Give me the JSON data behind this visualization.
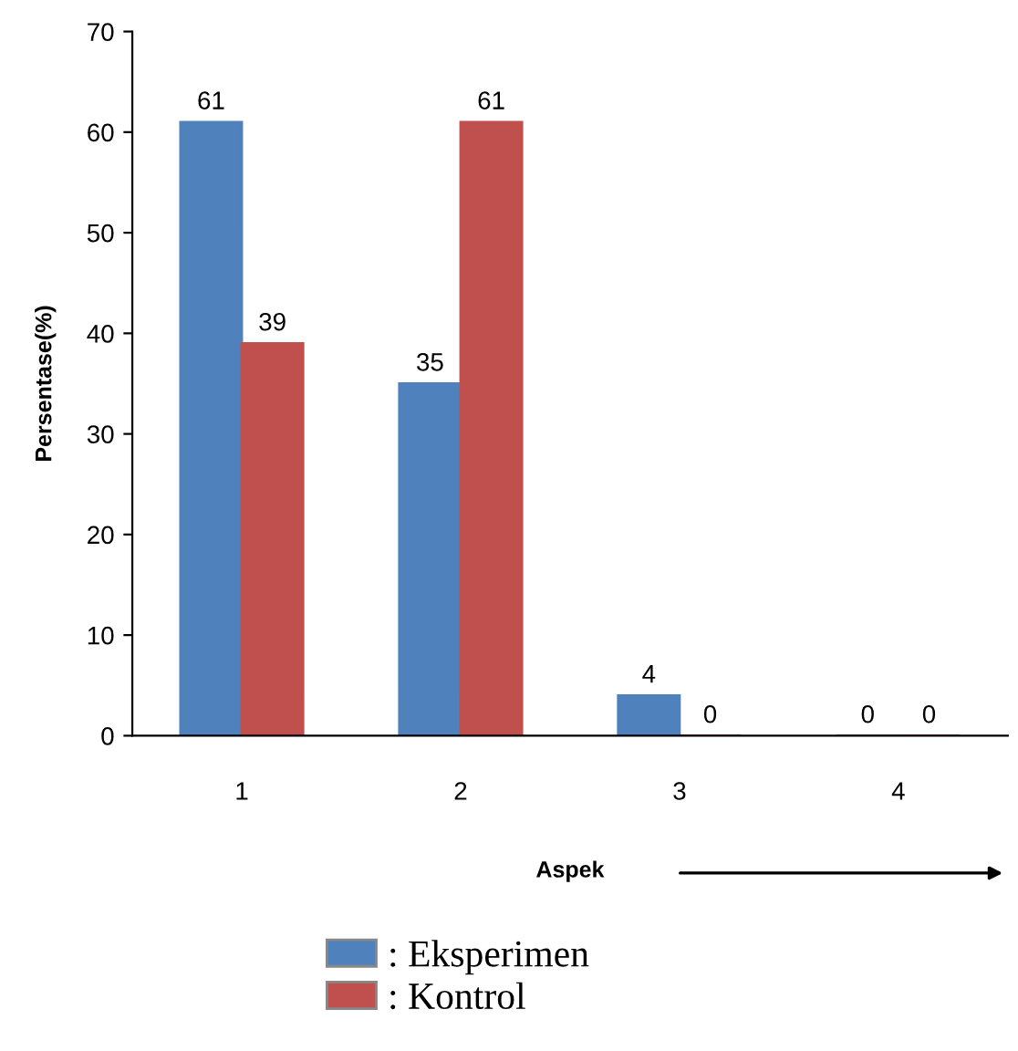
{
  "chart_data": {
    "type": "bar",
    "xlabel": "Aspek",
    "ylabel": "Persentase(%)",
    "categories": [
      "1",
      "2",
      "3",
      "4"
    ],
    "series": [
      {
        "name": ": Eksperimen",
        "color": "#4f81bd",
        "values": [
          61,
          35,
          4,
          0
        ]
      },
      {
        "name": ": Kontrol",
        "color": "#c0504d",
        "values": [
          39,
          61,
          0,
          0
        ]
      }
    ],
    "ylim": [
      0,
      70
    ],
    "yticks": [
      0,
      10,
      20,
      30,
      40,
      50,
      60,
      70
    ],
    "data_labels": true,
    "legend": "bottom",
    "grid": false
  }
}
